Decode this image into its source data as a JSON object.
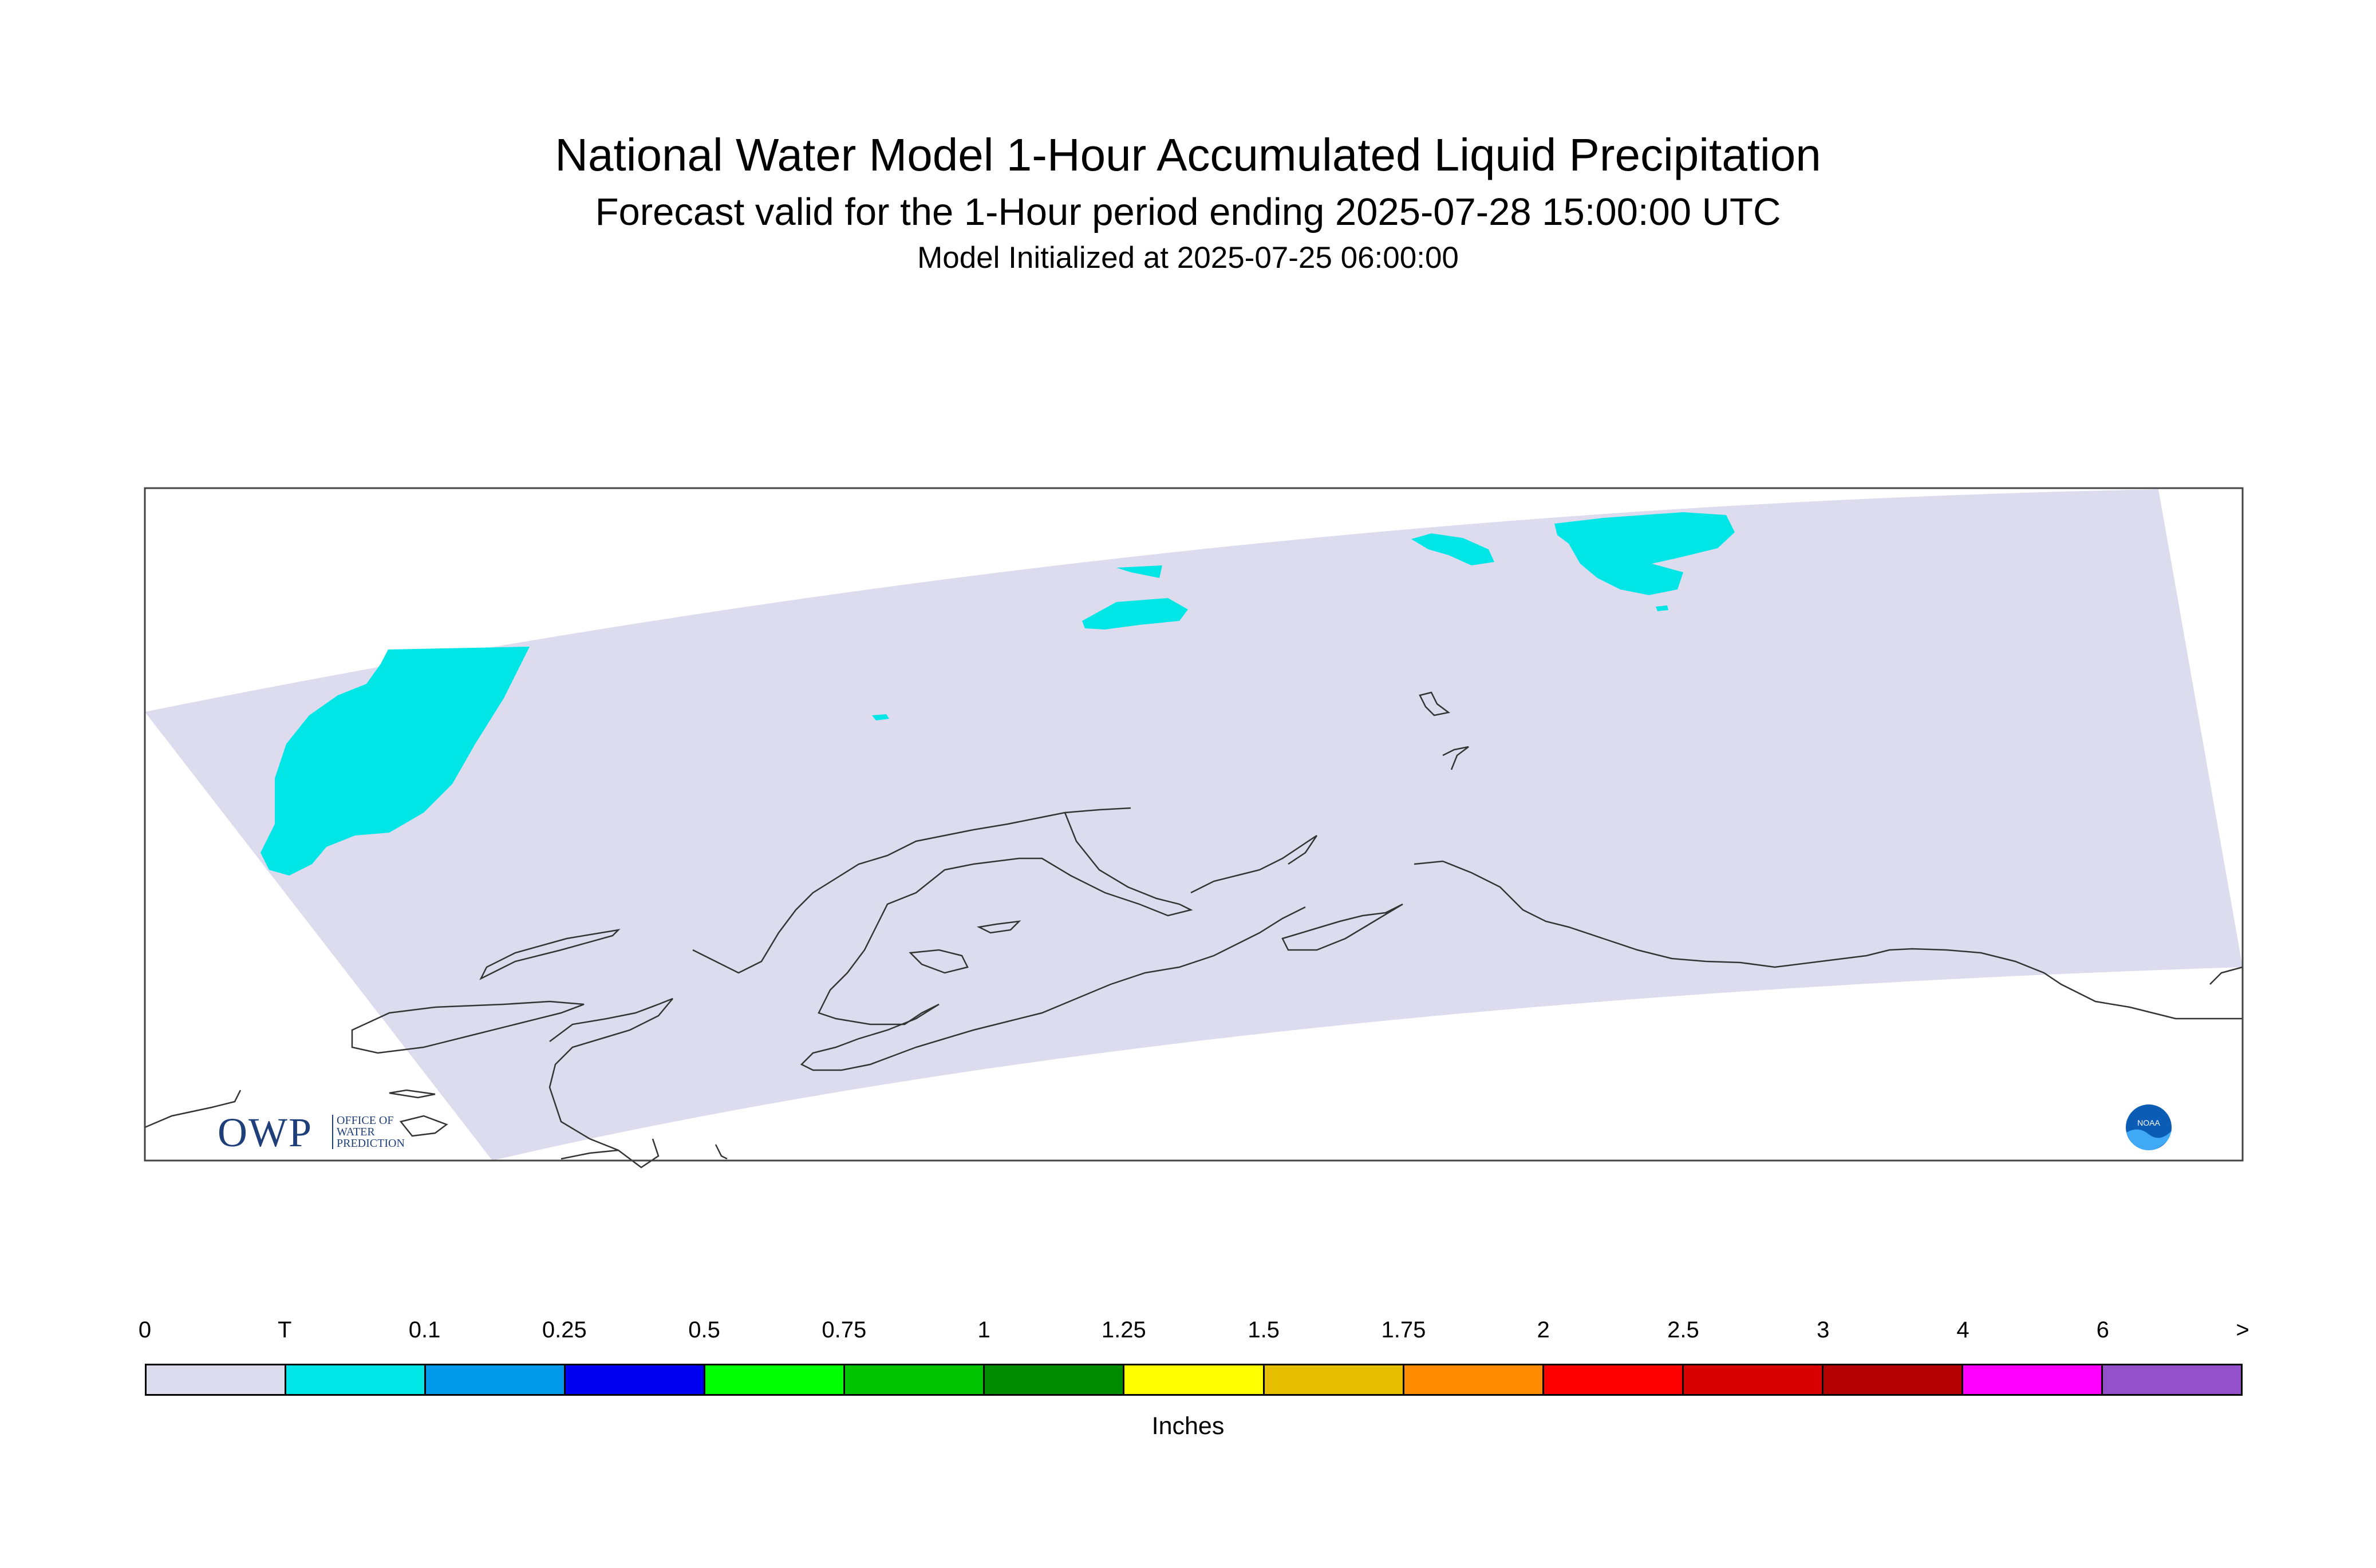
{
  "header": {
    "title": "National Water Model 1-Hour Accumulated Liquid Precipitation",
    "subtitle": "Forecast valid for the 1-Hour period ending 2025-07-28 15:00:00 UTC",
    "init": "Model Initialized at 2025-07-25 06:00:00"
  },
  "legend": {
    "units": "Inches",
    "labels": [
      "0",
      "T",
      "0.1",
      "0.25",
      "0.5",
      "0.75",
      "1",
      "1.25",
      "1.5",
      "1.75",
      "2",
      "2.5",
      "3",
      "4",
      "6",
      ">"
    ],
    "colors": [
      "#dcdcee",
      "#00e5e5",
      "#009aeb",
      "#0000f0",
      "#00ff00",
      "#00c400",
      "#008c00",
      "#ffff00",
      "#e6be00",
      "#ff8c00",
      "#ff0000",
      "#d80000",
      "#b40000",
      "#ff00ff",
      "#9450c8"
    ]
  },
  "map": {
    "domain_fill": "#dcdcee",
    "precip_fill": "#00e5e5",
    "coastline_color": "#333333"
  },
  "logos": {
    "owp_letters": "OWP",
    "owp_words": [
      "OFFICE OF",
      "WATER",
      "PREDICTION"
    ],
    "noaa": "NOAA"
  }
}
